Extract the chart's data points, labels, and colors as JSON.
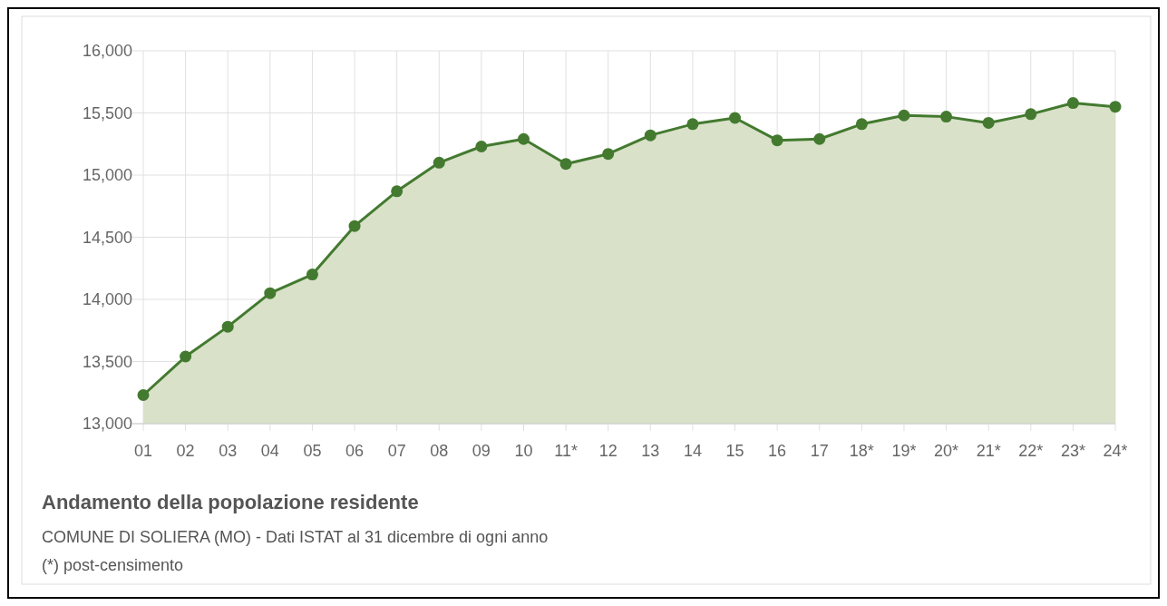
{
  "chart_data": {
    "type": "area",
    "title": "Andamento della popolazione residente",
    "subtitle": "COMUNE DI SOLIERA (MO) - Dati ISTAT al 31 dicembre di ogni anno",
    "annotations": [
      "(*) post-censimento"
    ],
    "categories": [
      "01",
      "02",
      "03",
      "04",
      "05",
      "06",
      "07",
      "08",
      "09",
      "10",
      "11*",
      "12",
      "13",
      "14",
      "15",
      "16",
      "17",
      "18*",
      "19*",
      "20*",
      "21*",
      "22*",
      "23*",
      "24*"
    ],
    "series": [
      {
        "color": "#437a2f",
        "values": [
          13230,
          13540,
          13780,
          14050,
          14200,
          14590,
          14870,
          15100,
          15230,
          15290,
          15090,
          15170,
          15320,
          15410,
          15460,
          15280,
          15290,
          15410,
          15480,
          15470,
          15420,
          15490,
          15580,
          15550
        ]
      }
    ],
    "ylim": [
      13000,
      16000
    ],
    "yticks": [
      {
        "value": 13000,
        "label": "13,000"
      },
      {
        "value": 13500,
        "label": "13,500"
      },
      {
        "value": 14000,
        "label": "14,000"
      },
      {
        "value": 14500,
        "label": "14,500"
      },
      {
        "value": 15000,
        "label": "15,000"
      },
      {
        "value": 15500,
        "label": "15,500"
      },
      {
        "value": 16000,
        "label": "16,000"
      }
    ],
    "grid": true,
    "marker": "circle"
  }
}
